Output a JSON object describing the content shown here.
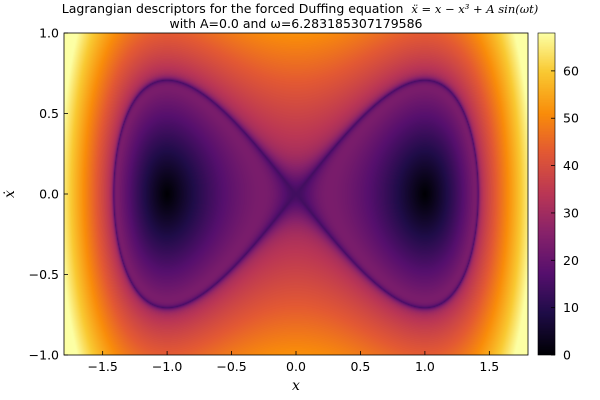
{
  "chart_data": {
    "type": "heatmap",
    "title_line1": "Lagrangian descriptors for the forced Duffing equation",
    "title_formula": "ẍ = x − x³ + A sin(ωt)",
    "title_line2": "with A=0.0 and ω=6.283185307179586",
    "xlabel": "x",
    "ylabel": "ẋ",
    "xlim": [
      -1.8,
      1.8
    ],
    "ylim": [
      -1.0,
      1.0
    ],
    "x_ticks": [
      -1.5,
      -1.0,
      -0.5,
      0.0,
      0.5,
      1.0,
      1.5
    ],
    "x_tick_labels": [
      "−1.5",
      "−1.0",
      "−0.5",
      "0.0",
      "0.5",
      "1.0",
      "1.5"
    ],
    "y_ticks": [
      -1.0,
      -0.5,
      0.0,
      0.5,
      1.0
    ],
    "y_tick_labels": [
      "−1.0",
      "−0.5",
      "0.0",
      "0.5",
      "1.0"
    ],
    "colorbar": {
      "colormap": "inferno",
      "range": [
        0,
        68
      ],
      "ticks": [
        0,
        10,
        20,
        30,
        40,
        50,
        60
      ],
      "tick_labels": [
        "0",
        "10",
        "20",
        "30",
        "40",
        "50",
        "60"
      ]
    },
    "features": {
      "wells": [
        [
          -1.0,
          0.0
        ],
        [
          1.0,
          0.0
        ]
      ],
      "saddle": [
        0.0,
        0.0
      ],
      "separatrix_max_xdot": 0.707,
      "separatrix_x_extent": 1.414
    }
  }
}
